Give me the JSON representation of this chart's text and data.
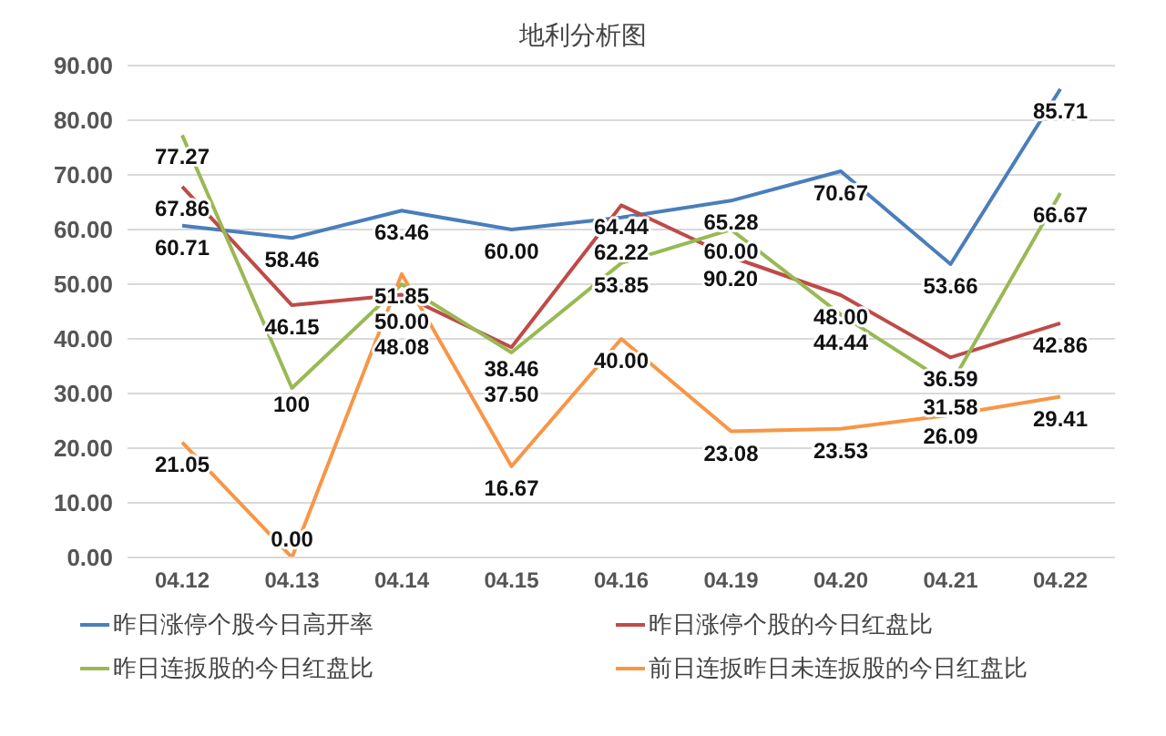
{
  "chart_data": {
    "type": "line",
    "title": "地利分析图",
    "categories": [
      "04.12",
      "04.13",
      "04.14",
      "04.15",
      "04.16",
      "04.19",
      "04.20",
      "04.21",
      "04.22"
    ],
    "series": [
      {
        "name": "昨日涨停个股今日高开率",
        "color": "#4a7ebb",
        "values": [
          60.71,
          58.46,
          63.46,
          60.0,
          62.22,
          65.28,
          70.67,
          53.66,
          85.71
        ],
        "value_labels": [
          "60.71",
          "58.46",
          "63.46",
          "60.00",
          "62.22",
          "65.28",
          "70.67",
          "53.66",
          "85.71"
        ]
      },
      {
        "name": "昨日涨停个股的今日红盘比",
        "color": "#be4b48",
        "values": [
          67.86,
          46.15,
          48.08,
          38.46,
          64.44,
          55,
          48.0,
          36.59,
          42.86
        ],
        "value_labels": [
          "67.86",
          "46.15",
          "48.08",
          "38.46",
          "64.44",
          null,
          "48.00",
          "36.59",
          "42.86"
        ]
      },
      {
        "name": "昨日连扳股的今日红盘比",
        "color": "#98b954",
        "values": [
          77.27,
          31,
          50.0,
          37.5,
          53.85,
          60.0,
          44.44,
          31.58,
          66.67
        ],
        "value_labels": [
          "77.27",
          null,
          "50.00",
          "37.50",
          "53.85",
          "60.00",
          "44.44",
          "31.58",
          "66.67"
        ]
      },
      {
        "name": "前日连扳昨日未连扳股的今日红盘比",
        "color": "#f79646",
        "values": [
          21.05,
          0.0,
          51.85,
          16.67,
          40.0,
          23.08,
          23.53,
          26.09,
          29.41
        ],
        "value_labels": [
          "21.05",
          "0.00",
          "51.85",
          "16.67",
          "40.00",
          "23.08",
          "23.53",
          "26.09",
          "29.41"
        ]
      }
    ],
    "ylim": [
      0,
      90
    ],
    "yticks": [
      {
        "value": 0,
        "label": "0.00"
      },
      {
        "value": 10,
        "label": "10.00"
      },
      {
        "value": 20,
        "label": "20.00"
      },
      {
        "value": 30,
        "label": "30.00"
      },
      {
        "value": 40,
        "label": "40.00"
      },
      {
        "value": 50,
        "label": "50.00"
      },
      {
        "value": 60,
        "label": "60.00"
      },
      {
        "value": 70,
        "label": "70.00"
      },
      {
        "value": 80,
        "label": "80.00"
      },
      {
        "value": 90,
        "label": "90.00"
      }
    ],
    "annotations": [
      "90.20",
      "100"
    ],
    "grid": "y",
    "legend": "bottom",
    "marker": "none",
    "line_style": "solid"
  }
}
